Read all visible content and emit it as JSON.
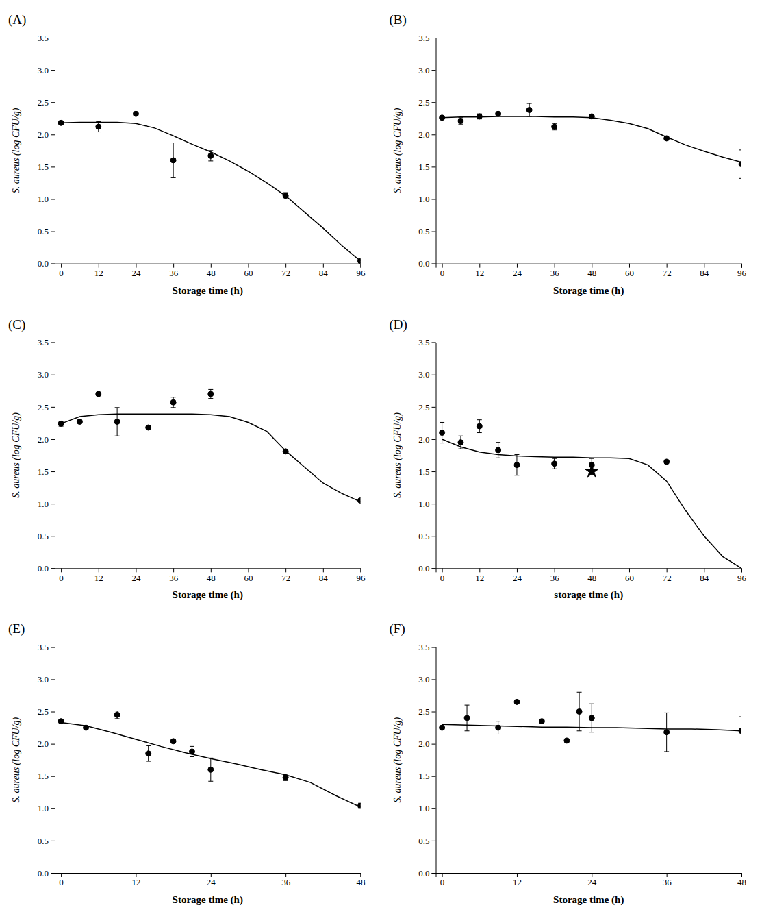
{
  "chart_data": [
    {
      "type": "line",
      "title": "(A)",
      "x_label": "Storage time (h)",
      "y_label": "S. aureus (log CFU/g)",
      "xlim": [
        -2,
        96
      ],
      "xticks": [
        0,
        12,
        24,
        36,
        48,
        60,
        72,
        84,
        96
      ],
      "ylim": [
        0,
        3.5
      ],
      "yticks": [
        {
          "value": 0,
          "label": "0.0"
        },
        0.5,
        {
          "value": 1,
          "label": "1.0"
        },
        1.5,
        {
          "value": 2,
          "label": "2.0"
        },
        2.5,
        {
          "value": 3,
          "label": "3.0"
        },
        3.5
      ],
      "grid": false,
      "series": [
        {
          "type": "line",
          "color": "#000000",
          "line_style": "solid",
          "x": [
            0,
            6,
            12,
            18,
            24,
            30,
            36,
            42,
            48,
            54,
            60,
            66,
            72,
            78,
            84,
            90,
            96
          ],
          "values": [
            2.18,
            2.19,
            2.19,
            2.19,
            2.17,
            2.1,
            1.98,
            1.85,
            1.73,
            1.59,
            1.43,
            1.25,
            1.05,
            0.8,
            0.55,
            0.28,
            0.04
          ]
        },
        {
          "type": "scatter",
          "color": "#000000",
          "marker": "circle",
          "x": [
            0,
            12,
            24,
            36,
            48,
            72,
            96
          ],
          "values": [
            2.18,
            2.12,
            2.32,
            1.6,
            1.67,
            1.05,
            0.04
          ],
          "yerr": [
            0.0,
            0.08,
            0.0,
            0.27,
            0.08,
            0.05,
            0.03
          ]
        }
      ]
    },
    {
      "type": "line",
      "title": "(B)",
      "x_label": "Storage time (h)",
      "y_label": "S. aureus (log CFU/g)",
      "xlim": [
        -2,
        96
      ],
      "xticks": [
        0,
        12,
        24,
        36,
        48,
        60,
        72,
        84,
        96
      ],
      "ylim": [
        0,
        3.5
      ],
      "yticks": [
        {
          "value": 0,
          "label": "0.0"
        },
        0.5,
        {
          "value": 1,
          "label": "1.0"
        },
        1.5,
        {
          "value": 2,
          "label": "2.0"
        },
        2.5,
        {
          "value": 3,
          "label": "3.0"
        },
        3.5
      ],
      "grid": false,
      "series": [
        {
          "type": "line",
          "color": "#000000",
          "line_style": "solid",
          "x": [
            0,
            6,
            12,
            18,
            24,
            30,
            36,
            42,
            48,
            54,
            60,
            66,
            72,
            78,
            84,
            90,
            96
          ],
          "values": [
            2.26,
            2.27,
            2.27,
            2.28,
            2.28,
            2.28,
            2.27,
            2.27,
            2.26,
            2.22,
            2.17,
            2.09,
            1.96,
            1.84,
            1.74,
            1.65,
            1.57
          ]
        },
        {
          "type": "scatter",
          "color": "#000000",
          "marker": "circle",
          "x": [
            0,
            6,
            12,
            18,
            28,
            36,
            48,
            72,
            96
          ],
          "values": [
            2.26,
            2.21,
            2.28,
            2.32,
            2.38,
            2.12,
            2.28,
            1.94,
            1.54
          ],
          "yerr": [
            0.0,
            0.05,
            0.04,
            0.0,
            0.1,
            0.05,
            0.03,
            0.0,
            0.22
          ]
        }
      ]
    },
    {
      "type": "line",
      "title": "(C)",
      "x_label": "Storage time (h)",
      "y_label": "S. aureus (log CFU/g)",
      "xlim": [
        -2,
        96
      ],
      "xticks": [
        0,
        12,
        24,
        36,
        48,
        60,
        72,
        84,
        96
      ],
      "ylim": [
        0,
        3.5
      ],
      "yticks": [
        {
          "value": 0,
          "label": "0.0"
        },
        0.5,
        {
          "value": 1,
          "label": "1.0"
        },
        1.5,
        {
          "value": 2,
          "label": "2.0"
        },
        2.5,
        {
          "value": 3,
          "label": "3.0"
        },
        3.5
      ],
      "grid": false,
      "series": [
        {
          "type": "line",
          "color": "#000000",
          "line_style": "solid",
          "x": [
            0,
            6,
            12,
            18,
            24,
            30,
            36,
            42,
            48,
            54,
            60,
            66,
            72,
            78,
            84,
            90,
            96
          ],
          "values": [
            2.24,
            2.35,
            2.38,
            2.39,
            2.39,
            2.39,
            2.39,
            2.39,
            2.38,
            2.35,
            2.26,
            2.12,
            1.82,
            1.57,
            1.32,
            1.16,
            1.03
          ]
        },
        {
          "type": "scatter",
          "color": "#000000",
          "marker": "circle",
          "x": [
            0,
            6,
            12,
            18,
            28,
            36,
            48,
            72,
            96
          ],
          "values": [
            2.24,
            2.27,
            2.7,
            2.27,
            2.18,
            2.57,
            2.7,
            1.81,
            1.05
          ],
          "yerr": [
            0.04,
            0.0,
            0.0,
            0.22,
            0.0,
            0.08,
            0.07,
            0.0,
            0.0
          ]
        }
      ]
    },
    {
      "type": "line",
      "title": "(D)",
      "x_label": "storage time (h)",
      "y_label": "S. aureus (log CFU/g)",
      "xlim": [
        -2,
        96
      ],
      "xticks": [
        0,
        12,
        24,
        36,
        48,
        60,
        72,
        84,
        96
      ],
      "ylim": [
        0,
        3.5
      ],
      "yticks": [
        {
          "value": 0,
          "label": "0.0"
        },
        0.5,
        {
          "value": 1,
          "label": "1.0"
        },
        1.5,
        {
          "value": 2,
          "label": "2.0"
        },
        2.5,
        {
          "value": 3,
          "label": "3.0"
        },
        3.5
      ],
      "grid": false,
      "series": [
        {
          "type": "line",
          "color": "#000000",
          "line_style": "solid",
          "x": [
            0,
            6,
            12,
            18,
            24,
            30,
            36,
            42,
            48,
            54,
            60,
            66,
            72,
            78,
            84,
            90,
            96
          ],
          "values": [
            2.0,
            1.88,
            1.8,
            1.76,
            1.74,
            1.73,
            1.72,
            1.72,
            1.71,
            1.71,
            1.7,
            1.6,
            1.35,
            0.9,
            0.5,
            0.18,
            0.0
          ]
        },
        {
          "type": "scatter",
          "color": "#000000",
          "marker": "star",
          "x": [
            48
          ],
          "values": [
            1.5
          ]
        },
        {
          "type": "scatter",
          "color": "#000000",
          "marker": "circle",
          "x": [
            0,
            6,
            12,
            18,
            24,
            36,
            48,
            72
          ],
          "values": [
            2.1,
            1.95,
            2.2,
            1.83,
            1.6,
            1.62,
            1.6,
            1.65
          ],
          "yerr": [
            0.16,
            0.1,
            0.1,
            0.12,
            0.16,
            0.08,
            0.1,
            0.0
          ]
        }
      ]
    },
    {
      "type": "line",
      "title": "(E)",
      "x_label": "Storage time (h)",
      "y_label": "S. aureus (log CFU/g)",
      "xlim": [
        -1,
        48
      ],
      "xticks": [
        0,
        12,
        24,
        36,
        48
      ],
      "ylim": [
        0,
        3.5
      ],
      "yticks": [
        {
          "value": 0,
          "label": "0.0"
        },
        0.5,
        {
          "value": 1,
          "label": "1.0"
        },
        1.5,
        {
          "value": 2,
          "label": "2.0"
        },
        2.5,
        {
          "value": 3,
          "label": "3.0"
        },
        3.5
      ],
      "grid": false,
      "series": [
        {
          "type": "line",
          "color": "#000000",
          "line_style": "solid",
          "x": [
            0,
            4,
            8,
            12,
            16,
            20,
            24,
            28,
            32,
            36,
            40,
            44,
            48
          ],
          "values": [
            2.33,
            2.28,
            2.18,
            2.07,
            1.96,
            1.86,
            1.77,
            1.69,
            1.6,
            1.52,
            1.4,
            1.2,
            1.02
          ]
        },
        {
          "type": "scatter",
          "color": "#000000",
          "marker": "circle",
          "x": [
            0,
            4,
            9,
            14,
            18,
            21,
            24,
            36,
            48
          ],
          "values": [
            2.35,
            2.25,
            2.45,
            1.85,
            2.04,
            1.88,
            1.6,
            1.48,
            1.04
          ],
          "yerr": [
            0.0,
            0.0,
            0.06,
            0.12,
            0.0,
            0.08,
            0.18,
            0.05,
            0.04
          ]
        }
      ]
    },
    {
      "type": "line",
      "title": "(F)",
      "x_label": "Storage time (h)",
      "y_label": "S. aureus (log CFU/g)",
      "xlim": [
        -1,
        48
      ],
      "xticks": [
        0,
        12,
        24,
        36,
        48
      ],
      "ylim": [
        0,
        3.5
      ],
      "yticks": [
        {
          "value": 0,
          "label": "0.0"
        },
        0.5,
        {
          "value": 1,
          "label": "1.0"
        },
        1.5,
        {
          "value": 2,
          "label": "2.0"
        },
        2.5,
        {
          "value": 3,
          "label": "3.0"
        },
        3.5
      ],
      "grid": false,
      "series": [
        {
          "type": "line",
          "color": "#000000",
          "line_style": "solid",
          "x": [
            0,
            4,
            8,
            12,
            16,
            20,
            24,
            28,
            32,
            36,
            40,
            44,
            48
          ],
          "values": [
            2.3,
            2.29,
            2.28,
            2.27,
            2.26,
            2.26,
            2.25,
            2.25,
            2.24,
            2.23,
            2.23,
            2.22,
            2.2
          ]
        },
        {
          "type": "scatter",
          "color": "#000000",
          "marker": "circle",
          "x": [
            0,
            4,
            9,
            12,
            16,
            20,
            22,
            24,
            36,
            48
          ],
          "values": [
            2.25,
            2.4,
            2.25,
            2.65,
            2.35,
            2.05,
            2.5,
            2.4,
            2.18,
            2.2
          ],
          "yerr": [
            0.0,
            0.2,
            0.1,
            0.0,
            0.0,
            0.0,
            0.3,
            0.22,
            0.3,
            0.22
          ]
        }
      ]
    }
  ]
}
